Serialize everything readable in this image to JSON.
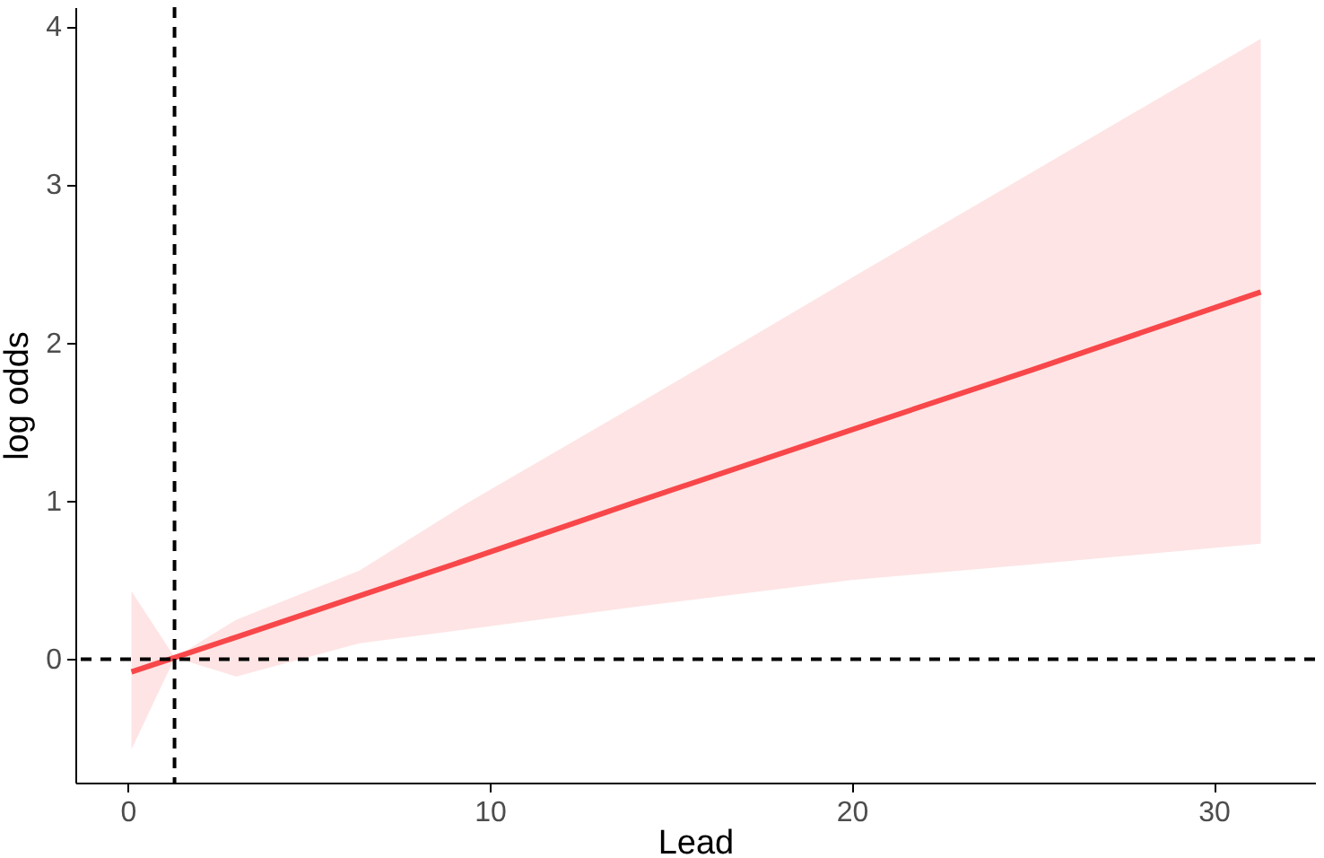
{
  "chart_data": {
    "type": "line",
    "xlabel": "Lead",
    "ylabel": "log odds",
    "series": [
      {
        "color": "#f8474a",
        "x": [
          0.1,
          1.3,
          3,
          6.4,
          9.4,
          14,
          20,
          25,
          31.3
        ],
        "values": [
          -0.08,
          0.01,
          0.14,
          0.4,
          0.63,
          0.99,
          1.45,
          1.83,
          2.32
        ],
        "lower": [
          -0.57,
          0.01,
          -0.11,
          0.1,
          0.19,
          0.33,
          0.5,
          0.6,
          0.73
        ],
        "upper": [
          0.43,
          0.01,
          0.25,
          0.56,
          0.99,
          1.6,
          2.41,
          3.08,
          3.92
        ]
      }
    ],
    "xlim": [
      -1.45,
      32.8
    ],
    "ylim": [
      -0.78,
      4.12
    ],
    "xticks": [
      0,
      10,
      20,
      30
    ],
    "yticks": [
      0,
      1,
      2,
      3,
      4
    ],
    "ref_lines": [
      {
        "axis": "y",
        "value": 0,
        "line_style": "dashed",
        "color": "#000000"
      },
      {
        "axis": "x",
        "value": 1.29,
        "line_style": "dashed",
        "color": "#000000"
      }
    ],
    "grid": false,
    "line_style": "solid",
    "marker": "none"
  }
}
